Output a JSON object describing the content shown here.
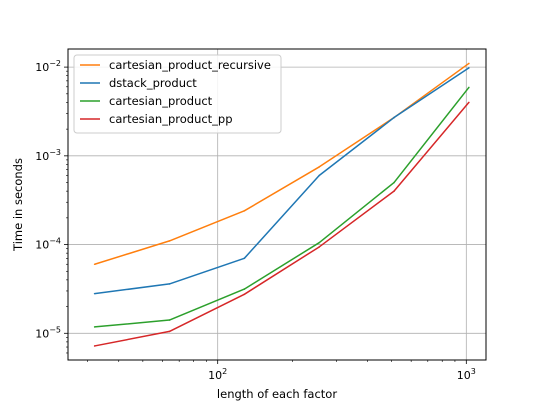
{
  "chart_data": {
    "type": "line",
    "xscale": "log",
    "yscale": "log",
    "xlabel": "length of each factor",
    "ylabel": "Time in seconds",
    "xlim": [
      25,
      1200
    ],
    "ylim": [
      5e-06,
      0.016
    ],
    "grid": true,
    "legend_position": "upper-left",
    "x_ticks": [
      {
        "value": 100,
        "base": "10",
        "exp": "2"
      },
      {
        "value": 1000,
        "base": "10",
        "exp": "3"
      }
    ],
    "y_ticks": [
      {
        "value": 1e-05,
        "base": "10",
        "exp": "−5"
      },
      {
        "value": 0.0001,
        "base": "10",
        "exp": "−4"
      },
      {
        "value": 0.001,
        "base": "10",
        "exp": "−3"
      },
      {
        "value": 0.01,
        "base": "10",
        "exp": "−2"
      }
    ],
    "x": [
      32,
      64,
      128,
      256,
      512,
      1024
    ],
    "series": [
      {
        "name": "cartesian_product_recursive",
        "color": "#ff7f0e",
        "values": [
          6e-05,
          0.00011,
          0.00024,
          0.00075,
          0.0027,
          0.011
        ]
      },
      {
        "name": "dstack_product",
        "color": "#1f77b4",
        "values": [
          2.8e-05,
          3.6e-05,
          7e-05,
          0.0006,
          0.0027,
          0.0098
        ]
      },
      {
        "name": "cartesian_product",
        "color": "#2ca02c",
        "values": [
          1.18e-05,
          1.41e-05,
          3.15e-05,
          0.000105,
          0.0005,
          0.0059
        ]
      },
      {
        "name": "cartesian_product_pp",
        "color": "#d62728",
        "values": [
          7.2e-06,
          1.05e-05,
          2.75e-05,
          9.4e-05,
          0.0004,
          0.004
        ]
      }
    ]
  }
}
